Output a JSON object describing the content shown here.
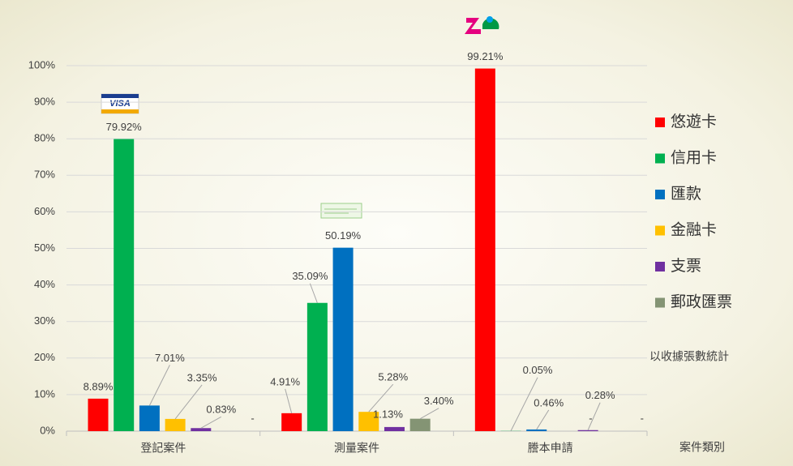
{
  "chart_data": {
    "type": "bar",
    "categories": [
      "登記案件",
      "測量案件",
      "謄本申請"
    ],
    "x_label": "案件類別",
    "annotation": "以收據張數統計",
    "ylim": [
      0,
      100
    ],
    "yticks": [
      {
        "value": 0,
        "label": "0%"
      },
      {
        "value": 10,
        "label": "10%"
      },
      {
        "value": 20,
        "label": "20%"
      },
      {
        "value": 30,
        "label": "30%"
      },
      {
        "value": 40,
        "label": "40%"
      },
      {
        "value": 50,
        "label": "50%"
      },
      {
        "value": 60,
        "label": "60%"
      },
      {
        "value": 70,
        "label": "70%"
      },
      {
        "value": 80,
        "label": "80%"
      },
      {
        "value": 90,
        "label": "90%"
      },
      {
        "value": 100,
        "label": "100%"
      }
    ],
    "grid": true,
    "legend": "right",
    "series": [
      {
        "name": "悠遊卡",
        "color": "#ff0000",
        "values": [
          8.89,
          4.91,
          99.21
        ],
        "value_labels": [
          "8.89%",
          "4.91%",
          "99.21%"
        ]
      },
      {
        "name": "信用卡",
        "color": "#00b050",
        "values": [
          79.92,
          35.09,
          0.05
        ],
        "value_labels": [
          "79.92%",
          "35.09%",
          "0.05%"
        ]
      },
      {
        "name": "匯款",
        "color": "#0070c0",
        "values": [
          7.01,
          50.19,
          0.46
        ],
        "value_labels": [
          "7.01%",
          "50.19%",
          "0.46%"
        ]
      },
      {
        "name": "金融卡",
        "color": "#ffc000",
        "values": [
          3.35,
          5.28,
          null
        ],
        "value_labels": [
          "3.35%",
          "5.28%",
          "-"
        ]
      },
      {
        "name": "支票",
        "color": "#7030a0",
        "values": [
          0.83,
          1.13,
          0.28
        ],
        "value_labels": [
          "0.83%",
          "1.13%",
          "0.28%"
        ]
      },
      {
        "name": "郵政匯票",
        "color": "#849474",
        "values": [
          null,
          3.4,
          null
        ],
        "value_labels": [
          "-",
          "3.40%",
          "-"
        ]
      }
    ]
  }
}
